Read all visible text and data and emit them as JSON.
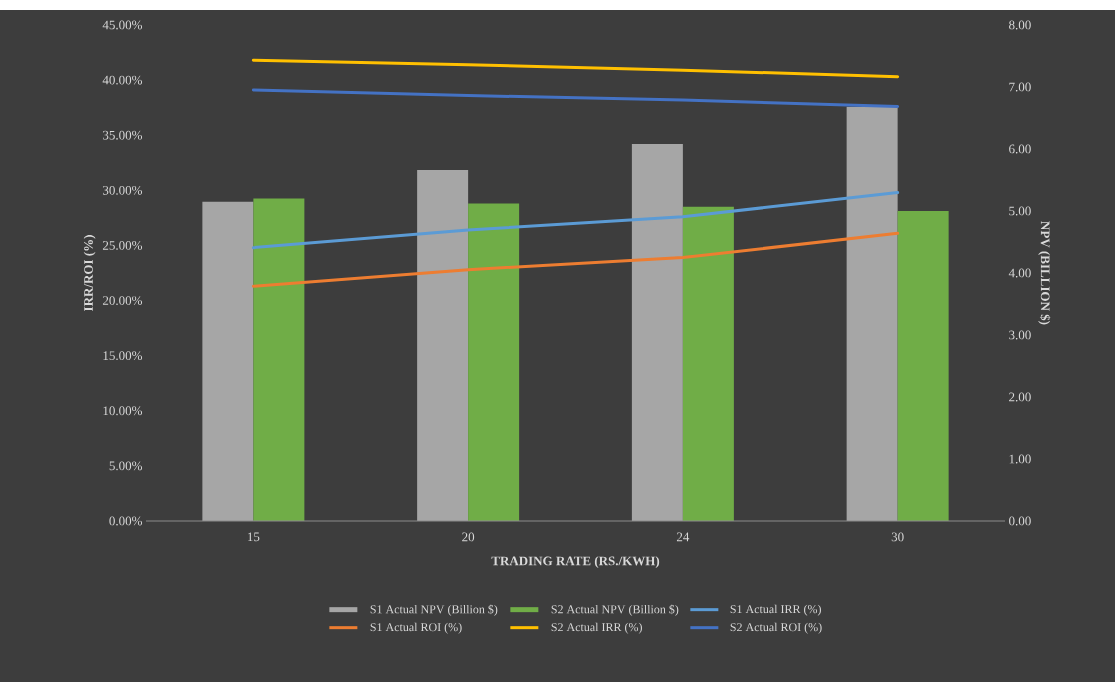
{
  "chart_data": {
    "type": "bar",
    "xlabel": "TRADING RATE (RS./KWH)",
    "ylabel": "IRR/ROI (%)",
    "y2label": "NPV (BILLION $)",
    "categories": [
      "15",
      "20",
      "24",
      "30"
    ],
    "series": [
      {
        "name": "S1 Actual NPV (Billion $)",
        "axis": "y2",
        "color": "#a6a6a6",
        "values": [
          5.15,
          5.66,
          6.08,
          6.68
        ]
      },
      {
        "name": "S2 Actual NPV (Billion $)",
        "axis": "y2",
        "color": "#70ad47",
        "values": [
          5.2,
          5.12,
          5.07,
          5.0
        ]
      },
      {
        "name": "S1 Actual IRR (%)",
        "type": "line",
        "color": "#5b9bd5",
        "values": [
          24.8,
          26.4,
          27.6,
          29.8
        ]
      },
      {
        "name": "S1 Actual ROI (%)",
        "type": "line",
        "color": "#ed7d31",
        "values": [
          21.3,
          22.8,
          23.9,
          26.1
        ]
      },
      {
        "name": "S2 Actual IRR (%)",
        "type": "line",
        "color": "#ffc000",
        "values": [
          41.8,
          41.4,
          40.9,
          40.3
        ]
      },
      {
        "name": "S2 Actual ROI (%)",
        "type": "line",
        "color": "#4472c4",
        "values": [
          39.1,
          38.6,
          38.2,
          37.6
        ]
      }
    ],
    "ylim": [
      0,
      45
    ],
    "yticks": [
      {
        "value": 0,
        "label": "0.00%"
      },
      {
        "value": 5,
        "label": "5.00%"
      },
      {
        "value": 10,
        "label": "10.00%"
      },
      {
        "value": 15,
        "label": "15.00%"
      },
      {
        "value": 20,
        "label": "20.00%"
      },
      {
        "value": 25,
        "label": "25.00%"
      },
      {
        "value": 30,
        "label": "30.00%"
      },
      {
        "value": 35,
        "label": "35.00%"
      },
      {
        "value": 40,
        "label": "40.00%"
      },
      {
        "value": 45,
        "label": "45.00%"
      }
    ],
    "y2lim": [
      0,
      8
    ],
    "y2ticks": [
      {
        "value": 0,
        "label": "0.00"
      },
      {
        "value": 1,
        "label": "1.00"
      },
      {
        "value": 2,
        "label": "2.00"
      },
      {
        "value": 3,
        "label": "3.00"
      },
      {
        "value": 4,
        "label": "4.00"
      },
      {
        "value": 5,
        "label": "5.00"
      },
      {
        "value": 6,
        "label": "6.00"
      },
      {
        "value": 7,
        "label": "7.00"
      },
      {
        "value": 8,
        "label": "8.00"
      }
    ],
    "legend": "bottom"
  }
}
